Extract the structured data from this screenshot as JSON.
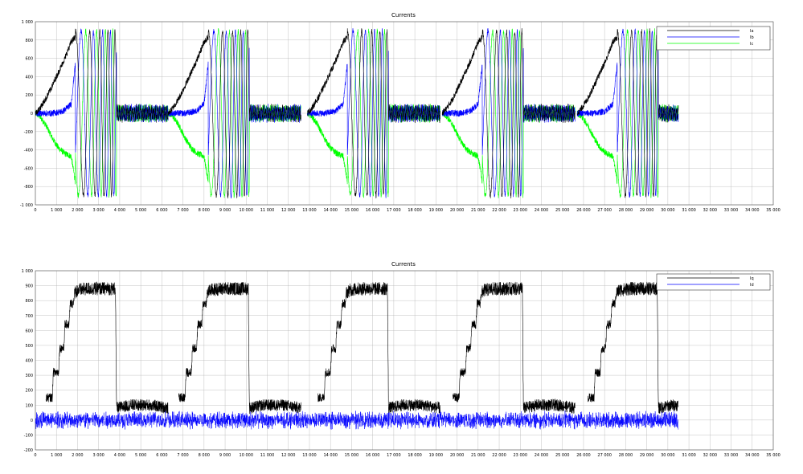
{
  "chart_data": [
    {
      "type": "line",
      "title": "Currents",
      "xlabel": "",
      "ylabel": "",
      "xlim": [
        0,
        35000
      ],
      "ylim": [
        -1000,
        1000
      ],
      "grid": true,
      "legend_position": "top-right",
      "xticks": [
        0,
        1000,
        2000,
        3000,
        4000,
        5000,
        6000,
        7000,
        8000,
        9000,
        10000,
        11000,
        12000,
        13000,
        14000,
        15000,
        16000,
        17000,
        18000,
        19000,
        20000,
        21000,
        22000,
        23000,
        24000,
        25000,
        26000,
        27000,
        28000,
        29000,
        30000,
        31000,
        32000,
        33000,
        34000,
        35000
      ],
      "xtick_labels": [
        "0",
        "1 000",
        "2 000",
        "3 000",
        "4 000",
        "5 000",
        "6 000",
        "7 000",
        "8 000",
        "9 000",
        "10 000",
        "11 000",
        "12 000",
        "13 000",
        "14 000",
        "15 000",
        "16 000",
        "17 000",
        "18 000",
        "19 000",
        "20 000",
        "21 000",
        "22 000",
        "23 000",
        "24 000",
        "25 000",
        "26 000",
        "27 000",
        "28 000",
        "29 000",
        "30 000",
        "31 000",
        "32 000",
        "33 000",
        "34 000",
        "35 000"
      ],
      "yticks": [
        -1000,
        -800,
        -600,
        -400,
        -200,
        0,
        200,
        400,
        600,
        800,
        1000
      ],
      "ytick_labels": [
        "-1 000",
        "-800",
        "-600",
        "-400",
        "-200",
        "0",
        "200",
        "400",
        "600",
        "800",
        "1 000"
      ],
      "cycle_starts": [
        0,
        6300,
        12900,
        19300,
        25700
      ],
      "series": [
        {
          "name": "Ia",
          "color": "#000000",
          "phase_deg": 0,
          "ramp_t": [
            0,
            200,
            500,
            800,
            1100,
            1400,
            1700,
            1900
          ],
          "ramp_y": [
            0,
            50,
            160,
            300,
            450,
            600,
            780,
            830
          ]
        },
        {
          "name": "Ib",
          "color": "#0000ff",
          "phase_deg": 240,
          "ramp_t": [
            0,
            300,
            800,
            1300,
            1700,
            1900
          ],
          "ramp_y": [
            0,
            0,
            0,
            20,
            100,
            550
          ]
        },
        {
          "name": "Ic",
          "color": "#00ff00",
          "phase_deg": 120,
          "ramp_t": [
            0,
            200,
            500,
            800,
            1100,
            1400,
            1700,
            1900
          ],
          "ramp_y": [
            0,
            -30,
            -130,
            -270,
            -380,
            -440,
            -470,
            -750
          ]
        }
      ]
    },
    {
      "type": "line",
      "title": "Currents",
      "xlabel": "",
      "ylabel": "",
      "xlim": [
        0,
        35000
      ],
      "ylim": [
        -200,
        1000
      ],
      "grid": true,
      "legend_position": "top-right",
      "xticks": [
        0,
        1000,
        2000,
        3000,
        4000,
        5000,
        6000,
        7000,
        8000,
        9000,
        10000,
        11000,
        12000,
        13000,
        14000,
        15000,
        16000,
        17000,
        18000,
        19000,
        20000,
        21000,
        22000,
        23000,
        24000,
        25000,
        26000,
        27000,
        28000,
        29000,
        30000,
        31000,
        32000,
        33000,
        34000,
        35000
      ],
      "xtick_labels": [
        "0",
        "1 000",
        "2 000",
        "3 000",
        "4 000",
        "5 000",
        "6 000",
        "7 000",
        "8 000",
        "9 000",
        "10 000",
        "11 000",
        "12 000",
        "13 000",
        "14 000",
        "15 000",
        "16 000",
        "17 000",
        "18 000",
        "19 000",
        "20 000",
        "21 000",
        "22 000",
        "23 000",
        "24 000",
        "25 000",
        "26 000",
        "27 000",
        "28 000",
        "29 000",
        "30 000",
        "31 000",
        "32 000",
        "33 000",
        "34 000",
        "35 000"
      ],
      "yticks": [
        -200,
        -100,
        0,
        100,
        200,
        300,
        400,
        500,
        600,
        700,
        800,
        900,
        1000
      ],
      "ytick_labels": [
        "-200",
        "-100",
        "0",
        "100",
        "200",
        "300",
        "400",
        "500",
        "600",
        "700",
        "800",
        "900",
        "1 000"
      ],
      "cycle_starts": [
        0,
        6300,
        12900,
        19300,
        25700
      ],
      "series": [
        {
          "name": "Iq",
          "color": "#000000",
          "points": [
            [
              0,
              null
            ],
            [
              500,
              150
            ],
            [
              800,
              150
            ],
            [
              850,
              320
            ],
            [
              1100,
              320
            ],
            [
              1150,
              480
            ],
            [
              1350,
              480
            ],
            [
              1400,
              640
            ],
            [
              1600,
              640
            ],
            [
              1650,
              780
            ],
            [
              1800,
              780
            ],
            [
              1850,
              850
            ],
            [
              2000,
              870
            ],
            [
              2500,
              880
            ],
            [
              3000,
              880
            ],
            [
              3800,
              880
            ],
            [
              3850,
              80
            ],
            [
              4500,
              100
            ],
            [
              5500,
              100
            ],
            [
              6300,
              80
            ]
          ]
        },
        {
          "name": "Id",
          "color": "#0000ff",
          "points": [
            [
              0,
              0
            ],
            [
              30500,
              0
            ]
          ]
        }
      ]
    }
  ]
}
